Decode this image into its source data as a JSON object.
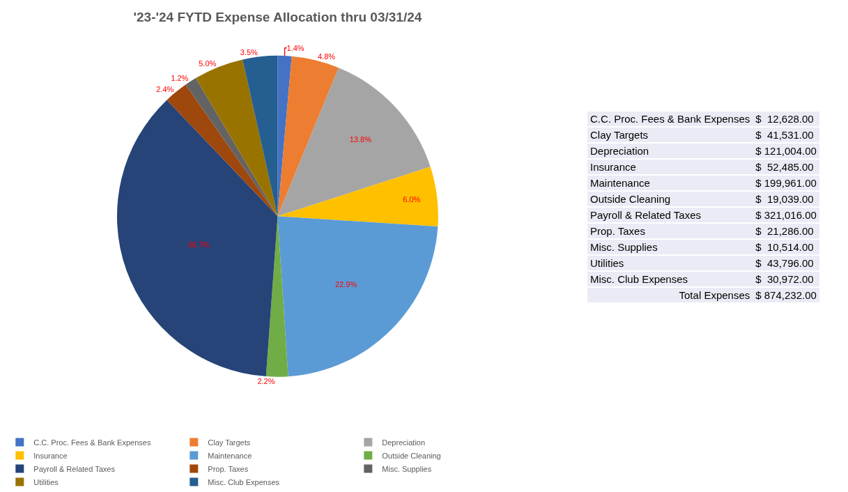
{
  "chart_data": [
    {
      "type": "pie",
      "title": "'23-'24 FYTD Expense Allocation thru 03/31/24",
      "categories": [
        "C.C. Proc. Fees & Bank Expenses",
        "Clay Targets",
        "Depreciation",
        "Insurance",
        "Maintenance",
        "Outside Cleaning",
        "Payroll & Related Taxes",
        "Prop. Taxes",
        "Misc. Supplies",
        "Utilities",
        "Misc. Club Expenses"
      ],
      "values": [
        1.4,
        4.8,
        13.8,
        6.0,
        22.9,
        2.2,
        36.7,
        2.4,
        1.2,
        5.0,
        3.5
      ],
      "value_labels": [
        "1.4%",
        "4.8%",
        "13.8%",
        "6.0%",
        "22.9%",
        "2.2%",
        "36.7%",
        "2.4%",
        "1.2%",
        "5.0%",
        "3.5%"
      ],
      "colors": [
        "#4472c4",
        "#ed7d31",
        "#a5a5a5",
        "#ffc000",
        "#5b9bd5",
        "#70ad47",
        "#264478",
        "#9e480e",
        "#636363",
        "#997300",
        "#255e91"
      ],
      "legend": "bottom"
    },
    {
      "type": "other",
      "categories": [
        "C.C. Proc. Fees & Bank Expenses",
        "Clay Targets",
        "Depreciation",
        "Insurance",
        "Maintenance",
        "Outside Cleaning",
        "Payroll & Related Taxes",
        "Prop. Taxes",
        "Misc. Supplies",
        "Utilities",
        "Misc. Club Expenses"
      ],
      "value_labels": [
        "$  12,628.00",
        "$  41,531.00",
        "$ 121,004.00",
        "$  52,485.00",
        "$ 199,961.00",
        "$  19,039.00",
        "$ 321,016.00",
        "$  21,286.00",
        "$  10,514.00",
        "$  43,796.00",
        "$  30,972.00"
      ],
      "annotations": [
        "Total Expenses"
      ],
      "totals": [
        "$ 874,232.00"
      ]
    }
  ]
}
